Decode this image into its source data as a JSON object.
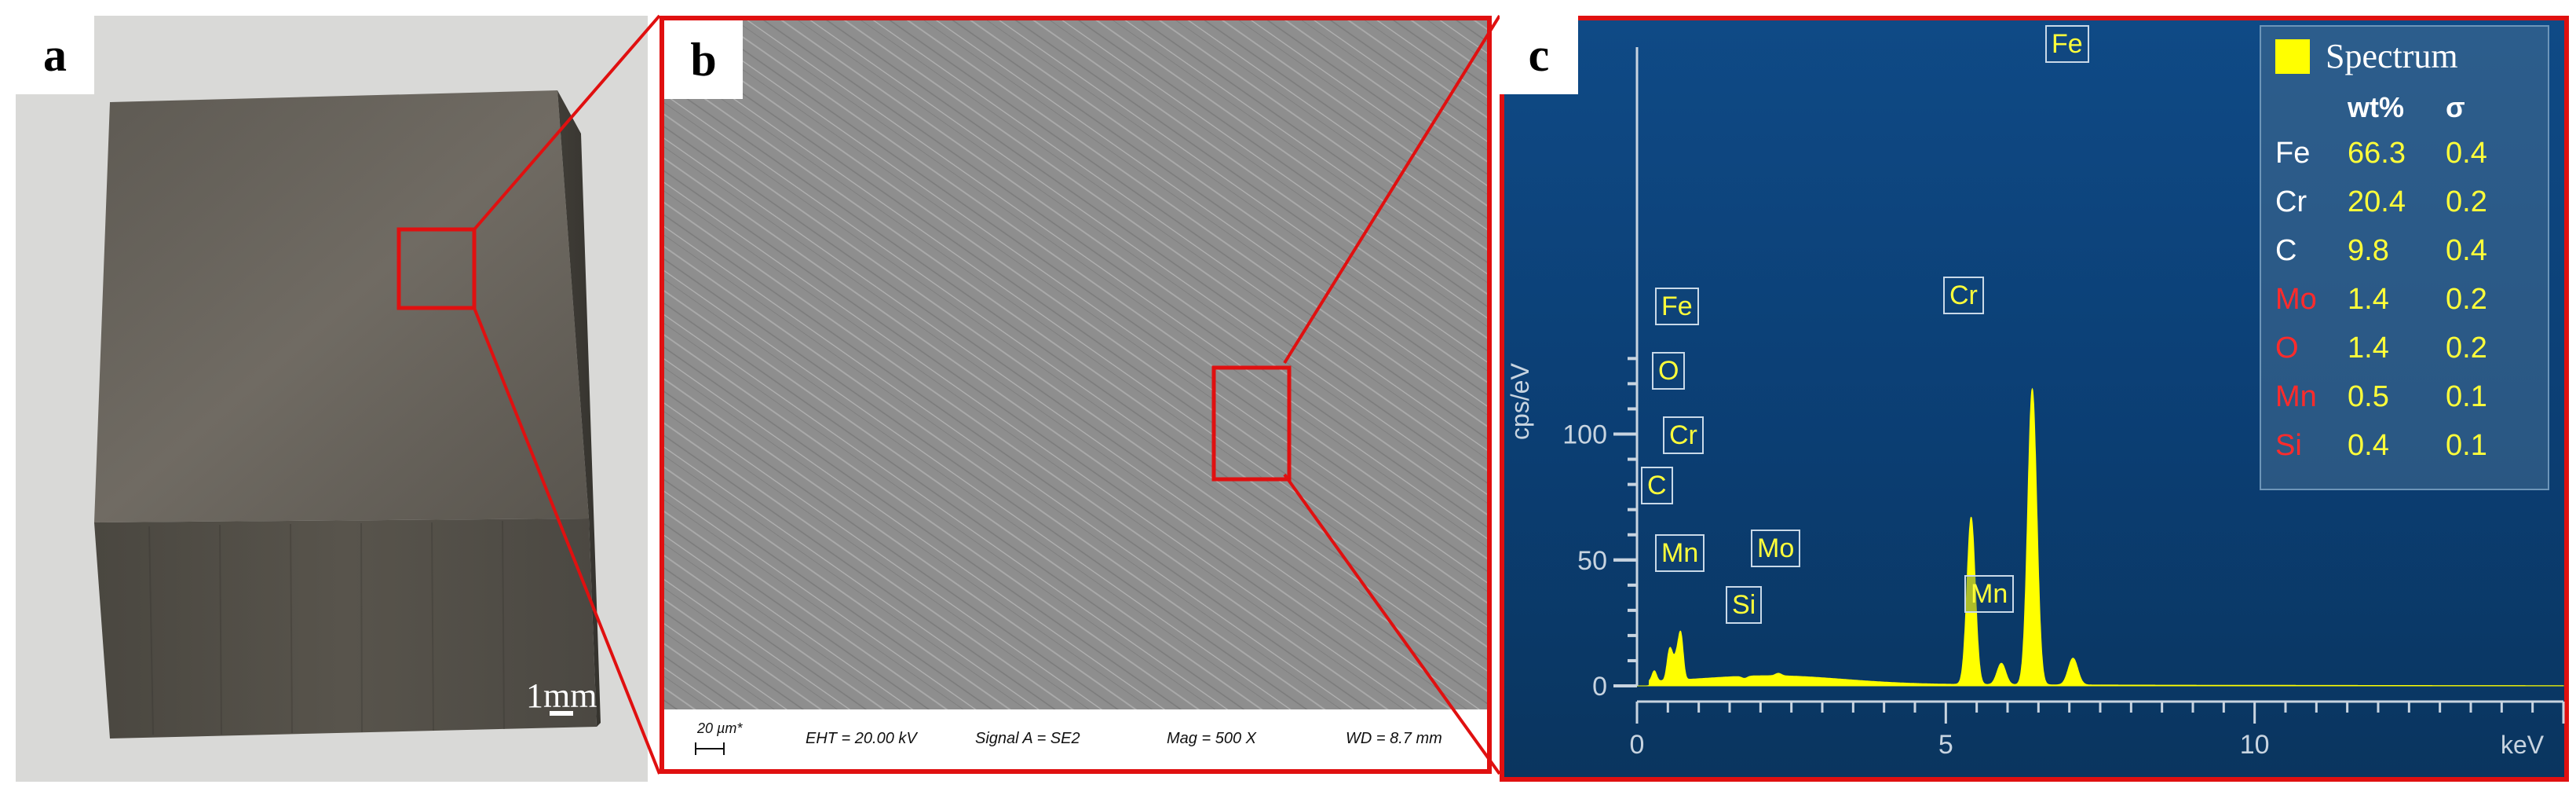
{
  "panels": {
    "a": {
      "letter": "a",
      "scale_label": "1mm"
    },
    "b": {
      "letter": "b",
      "sem_info": {
        "scale": "20 µm*",
        "eht": "EHT = 20.00 kV",
        "signal": "Signal A = SE2",
        "mag": "Mag =   500 X",
        "wd": "WD =  8.7 mm"
      }
    },
    "c": {
      "letter": "c",
      "y_axis_label": "cps/eV",
      "x_axis_unit": "keV",
      "legend": {
        "title": "Spectrum",
        "col_wt": "wt%",
        "col_sigma": "σ",
        "rows": [
          {
            "element": "Fe",
            "wt": "66.3",
            "sigma": "0.4",
            "color": "#ffffff"
          },
          {
            "element": "Cr",
            "wt": "20.4",
            "sigma": "0.2",
            "color": "#ffffff"
          },
          {
            "element": "C",
            "wt": "9.8",
            "sigma": "0.4",
            "color": "#ffffff"
          },
          {
            "element": "Mo",
            "wt": "1.4",
            "sigma": "0.2",
            "color": "#ff2b2b"
          },
          {
            "element": "O",
            "wt": "1.4",
            "sigma": "0.2",
            "color": "#ff2b2b"
          },
          {
            "element": "Mn",
            "wt": "0.5",
            "sigma": "0.1",
            "color": "#ff2b2b"
          },
          {
            "element": "Si",
            "wt": "0.4",
            "sigma": "0.1",
            "color": "#ff2b2b"
          }
        ]
      },
      "peak_labels": [
        "Fe",
        "Fe",
        "O",
        "Cr",
        "C",
        "Mn",
        "Mo",
        "Si",
        "Cr",
        "Mn"
      ]
    }
  },
  "colors": {
    "frame_red": "#e01010",
    "spectrum_yellow": "#ffff00",
    "eds_bg": "#0d4479"
  },
  "chart_data": {
    "type": "area",
    "title": "",
    "xlabel": "keV",
    "ylabel": "cps/eV",
    "xlim": [
      0,
      15
    ],
    "ylim": [
      0,
      130
    ],
    "x_ticks": [
      "0",
      "5",
      "10"
    ],
    "y_ticks": [
      "0",
      "50",
      "100"
    ],
    "grid": false,
    "legend_position": "top-right",
    "peaks": [
      {
        "label": "C",
        "x": 0.28,
        "y": 6
      },
      {
        "label": "O",
        "x": 0.52,
        "y": 12
      },
      {
        "label": "Cr",
        "x": 0.57,
        "y": 8
      },
      {
        "label": "Mn",
        "x": 0.64,
        "y": 10
      },
      {
        "label": "Fe",
        "x": 0.71,
        "y": 20
      },
      {
        "label": "Si",
        "x": 1.74,
        "y": 3
      },
      {
        "label": "Mo",
        "x": 2.29,
        "y": 5
      },
      {
        "label": "Cr",
        "x": 5.41,
        "y": 67
      },
      {
        "label": "Mn",
        "x": 5.9,
        "y": 9
      },
      {
        "label": "Fe",
        "x": 6.4,
        "y": 118
      },
      {
        "label": "",
        "x": 7.06,
        "y": 11
      }
    ]
  }
}
